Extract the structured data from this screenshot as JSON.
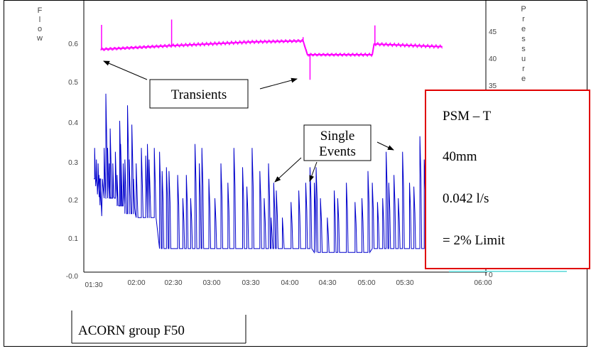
{
  "chart_data": {
    "type": "line",
    "left_axis_label": "Flow",
    "right_axis_label": "Pressure",
    "x_ticks": [
      "01:30",
      "02:00",
      "02:30",
      "03:00",
      "03:30",
      "04:00",
      "04:30",
      "05:00",
      "05:30",
      "06:00"
    ],
    "y_left_ticks": [
      "0.6",
      "0.5",
      "0.4",
      "0.3",
      "0.2",
      "0.1",
      "-0.0"
    ],
    "y_left_range": [
      0,
      0.67
    ],
    "y_right_ticks": [
      "45",
      "40",
      "35",
      "0"
    ],
    "series": [
      {
        "color": "#ff00ff",
        "axis": "right",
        "base": [
          [
            1.58,
            41.6
          ],
          [
            2.4,
            42.3
          ],
          [
            3.33,
            43.0
          ],
          [
            3.92,
            43.2
          ],
          [
            3.97,
            40.6
          ],
          [
            4.72,
            40.6
          ],
          [
            4.74,
            42.6
          ],
          [
            5.53,
            42.1
          ]
        ],
        "spikes": [
          [
            1.59,
            46.2
          ],
          [
            2.4,
            47.2
          ],
          [
            3.92,
            43.9
          ],
          [
            4.0,
            35.9
          ],
          [
            4.75,
            46.1
          ]
        ]
      },
      {
        "color": "#0000cc",
        "axis": "left",
        "baseline": [
          [
            1.5,
            0.25
          ],
          [
            1.6,
            0.2
          ],
          [
            1.75,
            0.18
          ],
          [
            1.85,
            0.16
          ],
          [
            1.98,
            0.15
          ],
          [
            2.15,
            0.15
          ],
          [
            2.22,
            0.07
          ],
          [
            2.5,
            0.07
          ],
          [
            2.62,
            0.07
          ],
          [
            2.85,
            0.07
          ],
          [
            3.0,
            0.07
          ],
          [
            3.5,
            0.07
          ],
          [
            3.75,
            0.07
          ],
          [
            3.88,
            0.07
          ],
          [
            4.0,
            0.06
          ],
          [
            4.55,
            0.06
          ],
          [
            4.7,
            0.07
          ],
          [
            5.0,
            0.07
          ],
          [
            5.4,
            0.07
          ]
        ],
        "peaks": [
          [
            1.51,
            0.33
          ],
          [
            1.53,
            0.3
          ],
          [
            1.55,
            0.29
          ],
          [
            1.56,
            0.26
          ],
          [
            1.58,
            0.22
          ],
          [
            1.62,
            0.33
          ],
          [
            1.64,
            0.47
          ],
          [
            1.66,
            0.33
          ],
          [
            1.68,
            0.29
          ],
          [
            1.69,
            0.38
          ],
          [
            1.72,
            0.29
          ],
          [
            1.75,
            0.32
          ],
          [
            1.77,
            0.26
          ],
          [
            1.8,
            0.4
          ],
          [
            1.81,
            0.34
          ],
          [
            1.84,
            0.29
          ],
          [
            1.86,
            0.3
          ],
          [
            1.89,
            0.44
          ],
          [
            1.91,
            0.3
          ],
          [
            1.94,
            0.39
          ],
          [
            1.96,
            0.25
          ],
          [
            1.99,
            0.29
          ],
          [
            2.05,
            0.33
          ],
          [
            2.1,
            0.31
          ],
          [
            2.12,
            0.34
          ],
          [
            2.14,
            0.3
          ],
          [
            2.2,
            0.33
          ],
          [
            2.26,
            0.32
          ],
          [
            2.29,
            0.27
          ],
          [
            2.34,
            0.28
          ],
          [
            2.37,
            0.27
          ],
          [
            2.47,
            0.26
          ],
          [
            2.53,
            0.2
          ],
          [
            2.57,
            0.26
          ],
          [
            2.62,
            0.2
          ],
          [
            2.67,
            0.34
          ],
          [
            2.72,
            0.29
          ],
          [
            2.75,
            0.33
          ],
          [
            2.83,
            0.25
          ],
          [
            2.9,
            0.2
          ],
          [
            2.97,
            0.29
          ],
          [
            3.05,
            0.24
          ],
          [
            3.12,
            0.33
          ],
          [
            3.22,
            0.28
          ],
          [
            3.27,
            0.23
          ],
          [
            3.33,
            0.33
          ],
          [
            3.42,
            0.27
          ],
          [
            3.47,
            0.2
          ],
          [
            3.52,
            0.29
          ],
          [
            3.55,
            0.15
          ],
          [
            3.58,
            0.24
          ],
          [
            3.61,
            0.22
          ],
          [
            3.68,
            0.15
          ],
          [
            3.78,
            0.19
          ],
          [
            3.87,
            0.22
          ],
          [
            3.95,
            0.24
          ],
          [
            4.0,
            0.28
          ],
          [
            4.05,
            0.24
          ],
          [
            4.07,
            0.28
          ],
          [
            4.12,
            0.2
          ],
          [
            4.2,
            0.15
          ],
          [
            4.28,
            0.22
          ],
          [
            4.32,
            0.2
          ],
          [
            4.42,
            0.24
          ],
          [
            4.52,
            0.19
          ],
          [
            4.6,
            0.2
          ],
          [
            4.67,
            0.27
          ],
          [
            4.72,
            0.24
          ],
          [
            4.78,
            0.19
          ],
          [
            4.84,
            0.2
          ],
          [
            4.88,
            0.32
          ],
          [
            4.91,
            0.24
          ],
          [
            4.97,
            0.26
          ],
          [
            5.02,
            0.2
          ],
          [
            5.07,
            0.32
          ],
          [
            5.15,
            0.24
          ],
          [
            5.2,
            0.23
          ],
          [
            5.27,
            0.36
          ],
          [
            5.32,
            0.3
          ],
          [
            5.35,
            0.28
          ],
          [
            5.38,
            0.22
          ]
        ]
      }
    ]
  },
  "callouts": {
    "transients": "Transients",
    "single_events_line1": "Single",
    "single_events_line2": "Events"
  },
  "info_box": {
    "line1": "PSM – T",
    "line2": "40mm",
    "line3": "0.042 l/s",
    "line4": "= 2% Limit"
  },
  "footer_label": "ACORN group F50",
  "colors": {
    "pressure": "#ff00ff",
    "flow": "#0000cc",
    "info_border": "#e00000",
    "cyan_line": "#7fe0e0"
  }
}
